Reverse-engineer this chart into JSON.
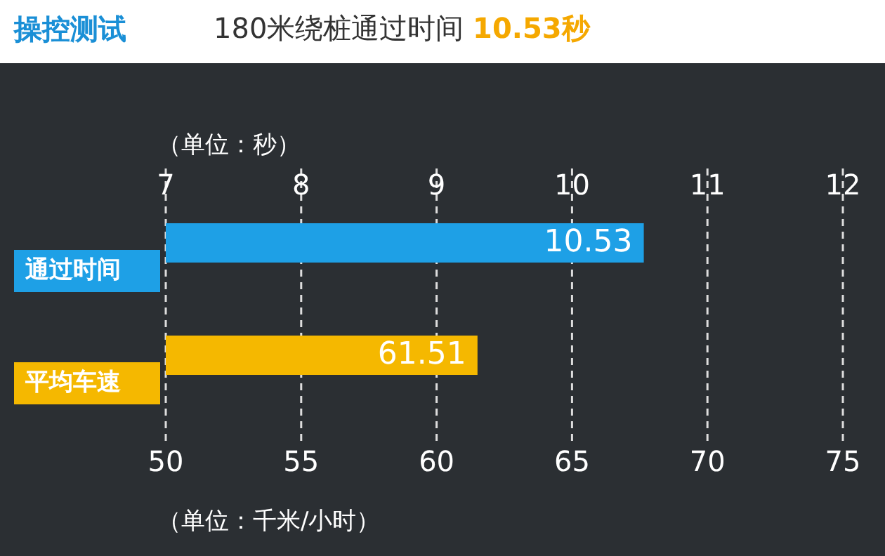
{
  "chart_data": {
    "type": "bar",
    "orientation": "horizontal",
    "title": "操控测试",
    "subtitle": "180米绕桩通过时间 10.53秒",
    "categories": [
      "通过时间",
      "平均车速"
    ],
    "series": [
      {
        "values": [
          10.53,
          null
        ],
        "color": "#1ea0e6",
        "axis": "x2"
      },
      {
        "values": [
          null,
          61.51
        ],
        "color": "#f5b800"
      }
    ],
    "xlim": [
      50,
      75
    ],
    "xticks": [
      50,
      55,
      60,
      65,
      70,
      75
    ],
    "xlabel": "（单位：千米/小时）",
    "x2lim": [
      7,
      12
    ],
    "x2ticks": [
      7,
      8,
      9,
      10,
      11,
      12
    ],
    "x2label": "（单位：秒）",
    "grid": "x",
    "data_labels": true
  }
}
